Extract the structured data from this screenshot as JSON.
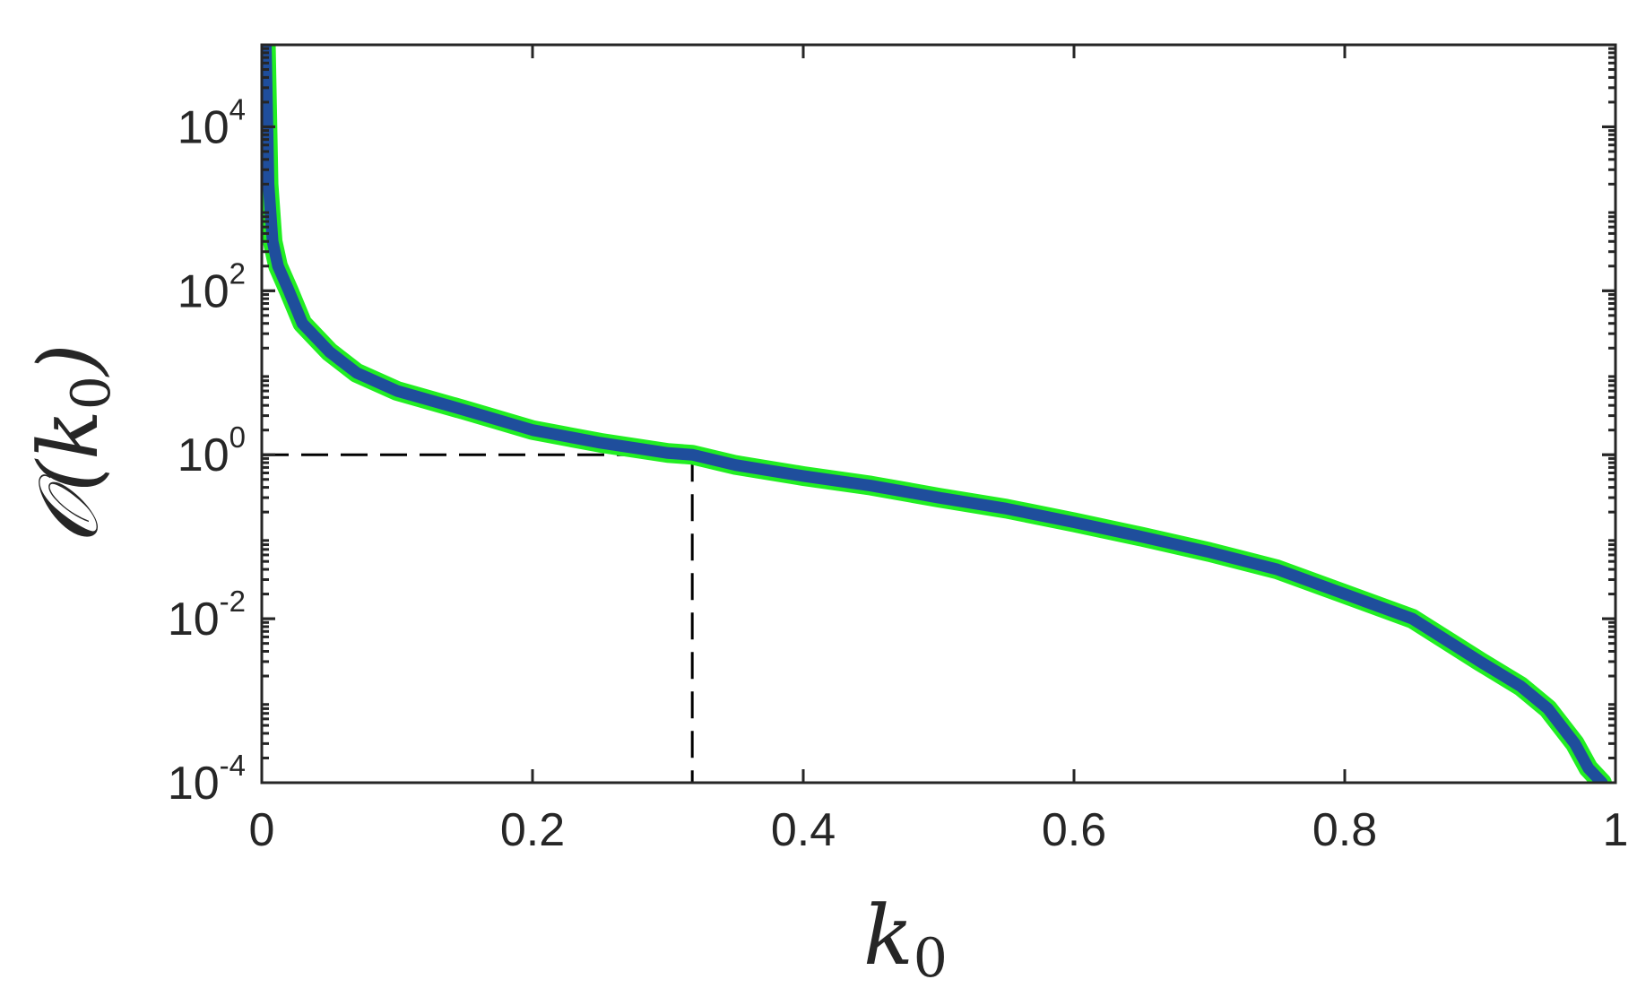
{
  "chart_data": {
    "type": "line",
    "title": "",
    "xlabel": "k",
    "xlabel_subscript": "0",
    "ylabel": "𝒪(k",
    "ylabel_subscript": "0",
    "ylabel_suffix": ")",
    "xscale": "linear",
    "yscale": "log",
    "xlim": [
      0,
      1
    ],
    "ylim": [
      0.0001,
      100000
    ],
    "grid": false,
    "legend": "none",
    "x_ticks": [
      {
        "value": 0,
        "label": "0"
      },
      {
        "value": 0.2,
        "label": "0.2"
      },
      {
        "value": 0.4,
        "label": "0.4"
      },
      {
        "value": 0.6,
        "label": "0.6"
      },
      {
        "value": 0.8,
        "label": "0.8"
      },
      {
        "value": 1,
        "label": "1"
      }
    ],
    "y_ticks": [
      {
        "value": 0.0001,
        "base": "10",
        "exp": "-4"
      },
      {
        "value": 0.01,
        "base": "10",
        "exp": "-2"
      },
      {
        "value": 1,
        "base": "10",
        "exp": "0"
      },
      {
        "value": 100,
        "base": "10",
        "exp": "2"
      },
      {
        "value": 10000,
        "base": "10",
        "exp": "4"
      }
    ],
    "series": [
      {
        "color": "#1f4e9c",
        "outline_color": "#22ee22",
        "x": [
          0.003,
          0.005,
          0.008,
          0.012,
          0.02,
          0.03,
          0.05,
          0.07,
          0.1,
          0.15,
          0.2,
          0.25,
          0.3,
          0.318,
          0.35,
          0.4,
          0.45,
          0.5,
          0.55,
          0.6,
          0.65,
          0.7,
          0.75,
          0.8,
          0.85,
          0.9,
          0.93,
          0.95,
          0.97,
          0.98,
          0.99
        ],
        "y": [
          100000,
          2000,
          400,
          200,
          100,
          40,
          18,
          10,
          6,
          3.5,
          2,
          1.4,
          1.05,
          1,
          0.75,
          0.55,
          0.42,
          0.3,
          0.22,
          0.15,
          0.1,
          0.065,
          0.04,
          0.02,
          0.01,
          0.003,
          0.0015,
          0.0008,
          0.0003,
          0.00015,
          0.0001
        ]
      }
    ],
    "reference_lines": [
      {
        "style": "dashed",
        "color": "#000000",
        "x": 0.318,
        "y": 1
      }
    ]
  }
}
